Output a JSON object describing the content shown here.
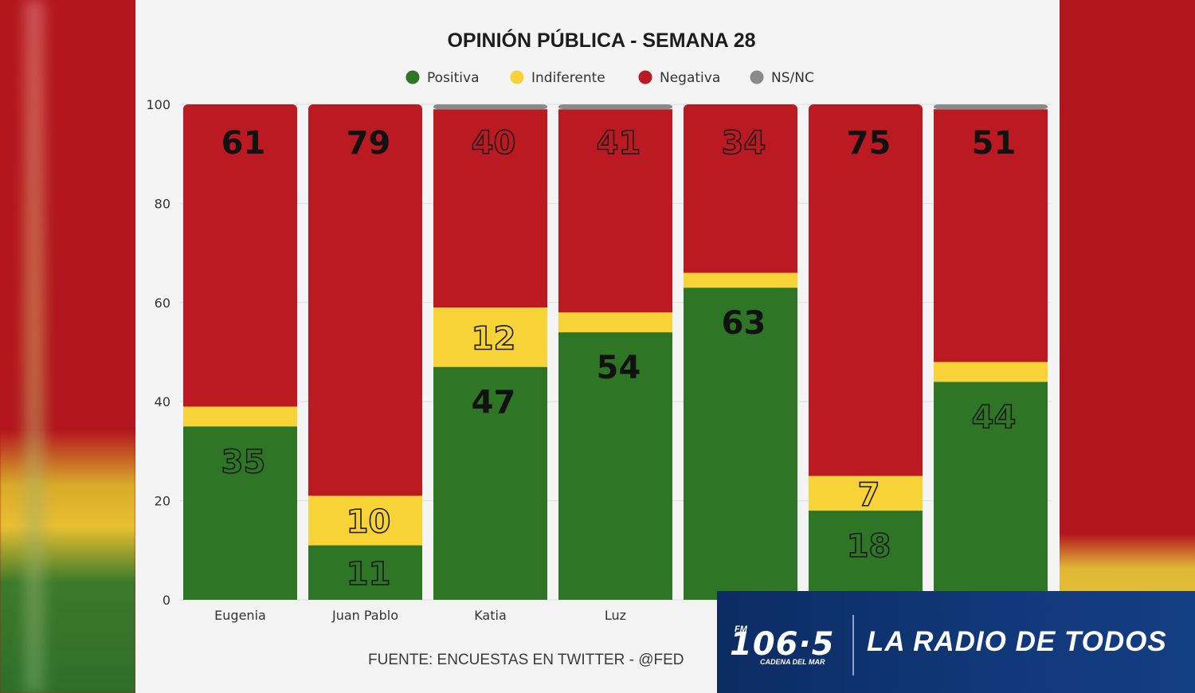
{
  "chart_data": {
    "type": "bar",
    "stacked": true,
    "title": "OPINIÓN PÚBLICA - SEMANA 28",
    "categories": [
      "Eugenia",
      "Juan Pablo",
      "Katia",
      "Luz",
      "",
      "",
      ""
    ],
    "series": [
      {
        "name": "Positiva",
        "color": "#2e7525",
        "values": [
          35,
          11,
          47,
          54,
          63,
          18,
          44
        ]
      },
      {
        "name": "Indiferente",
        "color": "#f7d337",
        "values": [
          4,
          10,
          12,
          4,
          3,
          7,
          4
        ]
      },
      {
        "name": "Negativa",
        "color": "#bc1a22",
        "values": [
          61,
          79,
          40,
          41,
          34,
          75,
          51
        ]
      },
      {
        "name": "NS/NC",
        "color": "#8a8a8a",
        "values": [
          0,
          0,
          1,
          1,
          0,
          0,
          1
        ]
      }
    ],
    "data_labels": [
      {
        "positive": "35",
        "indifferent": "",
        "negative": "61"
      },
      {
        "positive": "11",
        "indifferent": "10",
        "negative": "79"
      },
      {
        "positive": "47",
        "indifferent": "12",
        "negative": "40"
      },
      {
        "positive": "54",
        "indifferent": "",
        "negative": "41"
      },
      {
        "positive": "63",
        "indifferent": "",
        "negative": "34"
      },
      {
        "positive": "18",
        "indifferent": "7",
        "negative": "75"
      },
      {
        "positive": "44",
        "indifferent": "",
        "negative": "51"
      }
    ],
    "outlined_labels": [
      [
        "positive",
        "0"
      ],
      [
        "positive",
        "1"
      ],
      [
        "indifferent",
        "1"
      ],
      [
        "indifferent",
        "2"
      ],
      [
        "negative",
        "2"
      ],
      [
        "negative",
        "3"
      ],
      [
        "negative",
        "4"
      ],
      [
        "indifferent",
        "5"
      ],
      [
        "positive",
        "5"
      ],
      [
        "positive",
        "6"
      ]
    ],
    "y_ticks": [
      "0",
      "20",
      "40",
      "60",
      "80",
      "100"
    ],
    "ylim": [
      0,
      100
    ],
    "legend_position": "top-center",
    "grid": true,
    "source": "FUENTE: ENCUESTAS EN TWITTER - @FED"
  },
  "overlay": {
    "fm": "FM",
    "frequency": "106·5",
    "station": "CADENA DEL MAR",
    "slogan": "LA RADIO DE TODOS"
  }
}
